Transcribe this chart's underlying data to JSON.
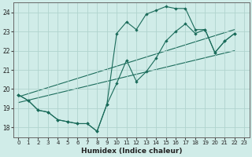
{
  "xlabel": "Humidex (Indice chaleur)",
  "ylabel": "",
  "bg_color": "#d0ece8",
  "grid_color": "#b0d4ce",
  "line_color": "#1a6b5a",
  "xlim": [
    -0.5,
    23.5
  ],
  "ylim": [
    17.5,
    24.5
  ],
  "yticks": [
    18,
    19,
    20,
    21,
    22,
    23,
    24
  ],
  "xticks": [
    0,
    1,
    2,
    3,
    4,
    5,
    6,
    7,
    8,
    9,
    10,
    11,
    12,
    13,
    14,
    15,
    16,
    17,
    18,
    19,
    20,
    21,
    22,
    23
  ],
  "series": [
    {
      "x": [
        0,
        1,
        2,
        3,
        4,
        5,
        6,
        7,
        8,
        9,
        10,
        11,
        12,
        13,
        14,
        15,
        16,
        17,
        18,
        19,
        20,
        21,
        22
      ],
      "y": [
        19.7,
        19.4,
        18.9,
        18.8,
        18.4,
        18.3,
        18.2,
        18.2,
        17.8,
        19.2,
        22.9,
        23.5,
        23.1,
        23.9,
        24.1,
        24.3,
        24.2,
        24.2,
        23.1,
        23.1,
        21.9,
        22.5,
        22.9
      ]
    },
    {
      "x": [
        0,
        1,
        2,
        3,
        4,
        5,
        6,
        7,
        8,
        9,
        10,
        11,
        12,
        13,
        14,
        15,
        16,
        17,
        18,
        19,
        20,
        21,
        22
      ],
      "y": [
        19.7,
        19.4,
        18.9,
        18.8,
        18.4,
        18.3,
        18.2,
        18.2,
        17.8,
        19.2,
        20.3,
        21.5,
        20.4,
        20.9,
        21.6,
        22.5,
        23.0,
        23.4,
        22.9,
        23.1,
        21.9,
        22.5,
        22.9
      ]
    },
    {
      "x": [
        0,
        22
      ],
      "y": [
        19.6,
        23.1
      ]
    },
    {
      "x": [
        0,
        22
      ],
      "y": [
        19.3,
        22.0
      ]
    }
  ]
}
